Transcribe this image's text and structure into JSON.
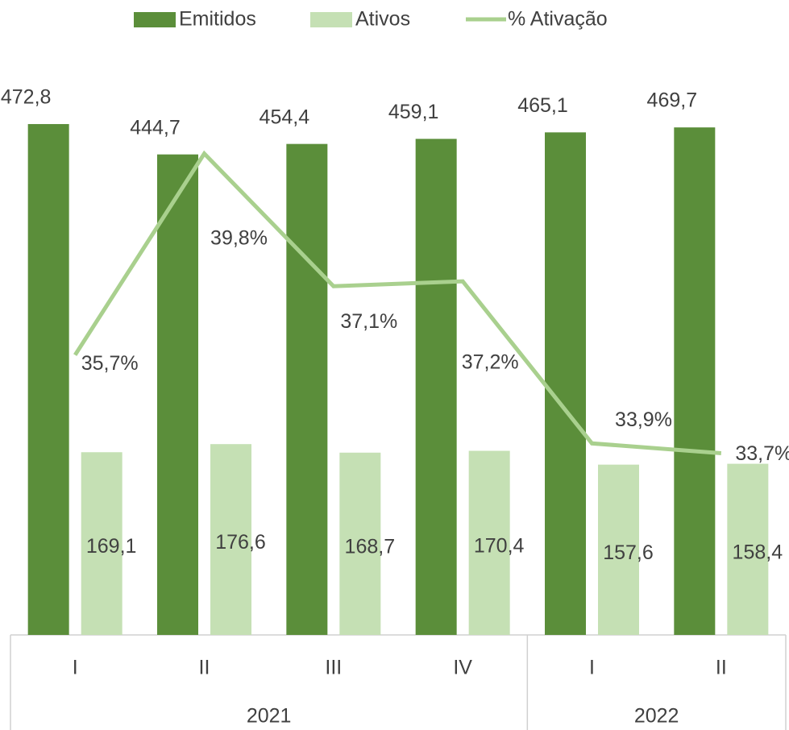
{
  "chart_data": {
    "type": "bar",
    "categories": [
      "I",
      "II",
      "III",
      "IV",
      "I",
      "II"
    ],
    "category_groups": [
      "2021",
      "2021",
      "2021",
      "2021",
      "2022",
      "2022"
    ],
    "ylim": [
      0,
      500
    ],
    "y2lim": [
      30,
      41
    ],
    "series": [
      {
        "name": "Emitidos",
        "type": "bar",
        "color": "#5b8e3a",
        "values": [
          472.8,
          444.7,
          454.4,
          459.1,
          465.1,
          469.7
        ],
        "value_labels": [
          "472,8",
          "444,7",
          "454,4",
          "459,1",
          "465,1",
          "469,7"
        ]
      },
      {
        "name": "Ativos",
        "type": "bar",
        "color": "#c5e0b4",
        "values": [
          169.1,
          176.6,
          168.7,
          170.4,
          157.6,
          158.4
        ],
        "value_labels": [
          "169,1",
          "176,6",
          "168,7",
          "170,4",
          "157,6",
          "158,4"
        ]
      },
      {
        "name": "% Ativação",
        "type": "line",
        "axis": "y2",
        "color": "#a9d08e",
        "values": [
          35.7,
          39.8,
          37.1,
          37.2,
          33.9,
          33.7
        ],
        "value_labels": [
          "35,7%",
          "39,8%",
          "37,1%",
          "37,2%",
          "33,9%",
          "33,7%"
        ]
      }
    ]
  }
}
